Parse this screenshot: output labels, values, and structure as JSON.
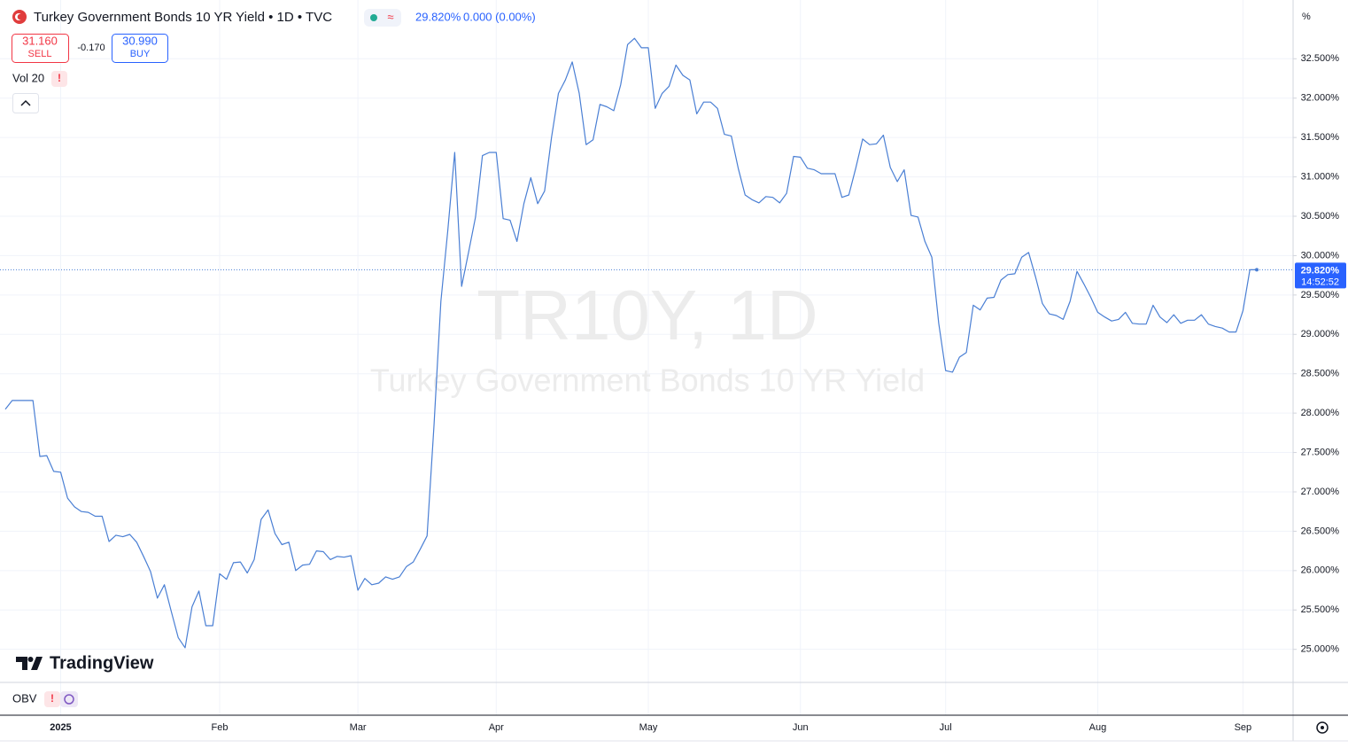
{
  "ui": {
    "title": "Turkey Government Bonds 10 YR Yield • 1D • TVC",
    "price": "29.820%",
    "change": "0.000 (0.00%)",
    "sell_price": "31.160",
    "sell": "SELL",
    "spread": "-0.170",
    "buy_price": "30.990",
    "buy": "BUY",
    "volume": "Vol 20",
    "watermark": "TR10Y, 1D",
    "watermark_name": "Turkey Government Bonds 10 YR Yield",
    "brand": "TradingView",
    "indicator": "OBV",
    "axis_unit": "%",
    "last_price": "29.820%",
    "countdown": "14:52:52"
  },
  "chart_data": {
    "type": "line",
    "color": "#4a7fd4",
    "grid": true,
    "categories": [
      null,
      null,
      null,
      null,
      null,
      null,
      null,
      null,
      "2025",
      null,
      null,
      null,
      null,
      null,
      null,
      null,
      null,
      null,
      null,
      null,
      null,
      null,
      null,
      null,
      null,
      null,
      null,
      null,
      null,
      null,
      null,
      "Feb",
      null,
      null,
      null,
      null,
      null,
      null,
      null,
      null,
      null,
      null,
      null,
      null,
      null,
      null,
      null,
      null,
      null,
      null,
      null,
      "Mar",
      null,
      null,
      null,
      null,
      null,
      null,
      null,
      null,
      null,
      null,
      null,
      null,
      null,
      null,
      null,
      null,
      null,
      null,
      null,
      "Apr",
      null,
      null,
      null,
      null,
      null,
      null,
      null,
      null,
      null,
      null,
      null,
      null,
      null,
      null,
      null,
      null,
      null,
      null,
      null,
      null,
      null,
      "May",
      null,
      null,
      null,
      null,
      null,
      null,
      null,
      null,
      null,
      null,
      null,
      null,
      null,
      null,
      null,
      null,
      null,
      null,
      null,
      null,
      null,
      "Jun",
      null,
      null,
      null,
      null,
      null,
      null,
      null,
      null,
      null,
      null,
      null,
      null,
      null,
      null,
      null,
      null,
      null,
      null,
      null,
      null,
      "Jul",
      null,
      null,
      null,
      null,
      null,
      null,
      null,
      null,
      null,
      null,
      null,
      null,
      null,
      null,
      null,
      null,
      null,
      null,
      null,
      null,
      null,
      "Aug",
      null,
      null,
      null,
      null,
      null,
      null,
      null,
      null,
      null,
      null,
      null,
      null,
      null,
      null,
      null,
      null,
      null,
      null,
      null,
      null,
      "Sep",
      null,
      null
    ],
    "values": [
      28.05,
      28.16,
      28.16,
      28.16,
      28.16,
      27.45,
      27.46,
      27.26,
      27.25,
      26.92,
      26.81,
      26.75,
      26.74,
      26.69,
      26.69,
      26.37,
      26.45,
      26.43,
      26.46,
      26.36,
      26.18,
      25.99,
      25.65,
      25.82,
      25.48,
      25.15,
      25.02,
      25.54,
      25.74,
      25.3,
      25.3,
      25.96,
      25.89,
      26.1,
      26.11,
      25.97,
      26.14,
      26.65,
      26.77,
      26.47,
      26.33,
      26.36,
      26.0,
      26.07,
      26.08,
      26.25,
      26.24,
      26.14,
      26.18,
      26.17,
      26.19,
      25.75,
      25.9,
      25.82,
      25.84,
      25.92,
      25.89,
      25.92,
      26.05,
      26.11,
      26.27,
      26.44,
      27.84,
      29.42,
      30.32,
      31.31,
      29.61,
      30.04,
      30.49,
      31.27,
      31.31,
      31.31,
      30.47,
      30.45,
      30.18,
      30.66,
      30.99,
      30.66,
      30.82,
      31.5,
      32.06,
      32.23,
      32.46,
      32.06,
      31.41,
      31.47,
      31.92,
      31.89,
      31.84,
      32.17,
      32.68,
      32.76,
      32.64,
      32.64,
      31.87,
      32.06,
      32.15,
      32.42,
      32.29,
      32.23,
      31.8,
      31.95,
      31.95,
      31.87,
      31.54,
      31.52,
      31.11,
      30.77,
      30.71,
      30.67,
      30.75,
      30.74,
      30.67,
      30.79,
      31.26,
      31.25,
      31.11,
      31.09,
      31.04,
      31.04,
      31.04,
      30.74,
      30.77,
      31.11,
      31.48,
      31.41,
      31.42,
      31.53,
      31.12,
      30.94,
      31.09,
      30.51,
      30.49,
      30.18,
      29.98,
      29.14,
      28.54,
      28.52,
      28.71,
      28.77,
      29.37,
      29.31,
      29.46,
      29.47,
      29.69,
      29.76,
      29.77,
      29.98,
      30.04,
      29.73,
      29.39,
      29.26,
      29.24,
      29.19,
      29.42,
      29.8,
      29.64,
      29.47,
      29.28,
      29.22,
      29.17,
      29.19,
      29.28,
      29.14,
      29.13,
      29.13,
      29.37,
      29.22,
      29.15,
      29.25,
      29.14,
      29.18,
      29.18,
      29.25,
      29.13,
      29.1,
      29.08,
      29.03,
      29.03,
      29.3,
      29.82,
      29.82
    ],
    "ylim": [
      24.58,
      33.19
    ],
    "yticks": [
      {
        "value": 25,
        "label": "25.000%"
      },
      {
        "value": 25.5,
        "label": "25.500%"
      },
      {
        "value": 26,
        "label": "26.000%"
      },
      {
        "value": 26.5,
        "label": "26.500%"
      },
      {
        "value": 27,
        "label": "27.000%"
      },
      {
        "value": 27.5,
        "label": "27.500%"
      },
      {
        "value": 28,
        "label": "28.000%"
      },
      {
        "value": 28.5,
        "label": "28.500%"
      },
      {
        "value": 29,
        "label": "29.000%"
      },
      {
        "value": 29.5,
        "label": "29.500%"
      },
      {
        "value": 30,
        "label": "30.000%"
      },
      {
        "value": 30.5,
        "label": "30.500%"
      },
      {
        "value": 31,
        "label": "31.000%"
      },
      {
        "value": 31.5,
        "label": "31.500%"
      },
      {
        "value": 32,
        "label": "32.000%"
      },
      {
        "value": 32.5,
        "label": "32.500%"
      }
    ]
  }
}
